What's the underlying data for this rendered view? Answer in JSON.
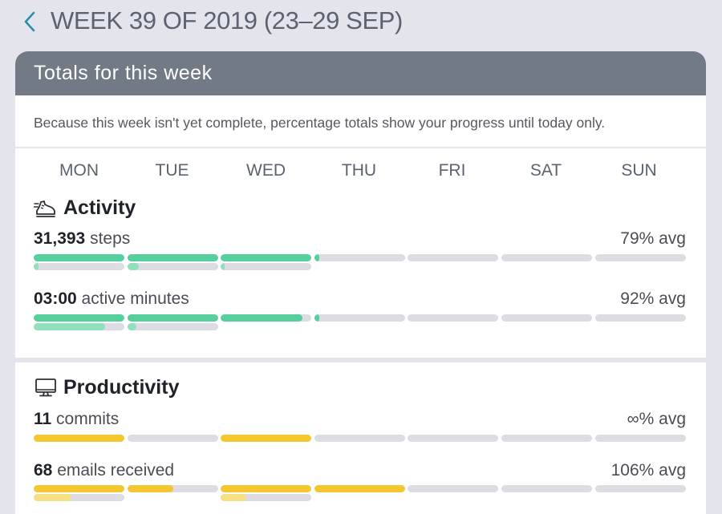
{
  "header": {
    "title": "WEEK 39 OF 2019 (23–29 SEP)",
    "back_icon": "chevron-left-icon",
    "accent": "#2a8fa8"
  },
  "totals": {
    "heading": "Totals for this week",
    "notice": "Because this week isn't yet complete, percentage totals show your progress until today only.",
    "days": [
      "MON",
      "TUE",
      "WED",
      "THU",
      "FRI",
      "SAT",
      "SUN"
    ]
  },
  "activity": {
    "title": "Activity",
    "icon": "running-shoe-icon",
    "color_main": "#55cf9b",
    "color_sub": "#8fe0bb",
    "metrics": [
      {
        "value": "31,393",
        "unit": " steps",
        "avg": "79% avg",
        "main_levels": [
          1.0,
          1.0,
          1.0,
          0.05,
          0,
          0,
          0
        ],
        "sub_levels": [
          0.05,
          0.12,
          0.04,
          null,
          null,
          null,
          null
        ]
      },
      {
        "value": "03:00",
        "unit": " active minutes",
        "avg": "92% avg",
        "main_levels": [
          1.0,
          1.0,
          0.9,
          0.05,
          0,
          0,
          0
        ],
        "sub_levels": [
          0.79,
          0.1,
          null,
          null,
          null,
          null,
          null
        ]
      }
    ]
  },
  "productivity": {
    "title": "Productivity",
    "icon": "computer-monitor-icon",
    "color_main": "#f5c72e",
    "color_sub": "#f9df83",
    "metrics": [
      {
        "value": "11",
        "unit": " commits",
        "avg": "∞% avg",
        "main_levels": [
          1.0,
          0,
          1.0,
          0,
          0,
          0,
          0
        ],
        "sub_levels": [
          null,
          null,
          null,
          null,
          null,
          null,
          null
        ]
      },
      {
        "value": "68",
        "unit": " emails received",
        "avg": "106% avg",
        "main_levels": [
          1.0,
          0.5,
          1.0,
          1.0,
          0,
          0,
          0
        ],
        "sub_levels": [
          0.42,
          null,
          0.28,
          null,
          null,
          null,
          null
        ]
      }
    ]
  }
}
